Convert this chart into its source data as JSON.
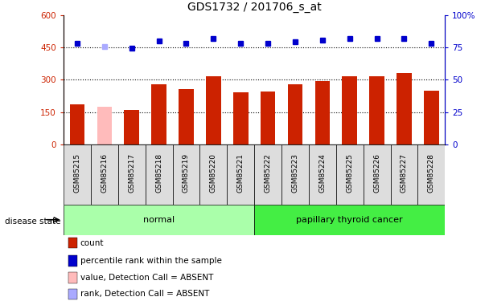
{
  "title": "GDS1732 / 201706_s_at",
  "samples": [
    "GSM85215",
    "GSM85216",
    "GSM85217",
    "GSM85218",
    "GSM85219",
    "GSM85220",
    "GSM85221",
    "GSM85222",
    "GSM85223",
    "GSM85224",
    "GSM85225",
    "GSM85226",
    "GSM85227",
    "GSM85228"
  ],
  "counts": [
    185,
    175,
    160,
    280,
    255,
    315,
    240,
    245,
    280,
    295,
    315,
    315,
    330,
    250
  ],
  "ranks": [
    470,
    455,
    445,
    480,
    470,
    490,
    470,
    470,
    475,
    485,
    490,
    490,
    490,
    470
  ],
  "absent_count_idx": [
    1
  ],
  "absent_rank_idx": [
    1
  ],
  "bar_color_normal": "#cc2200",
  "bar_color_absent": "#ffbbbb",
  "rank_color_normal": "#0000cc",
  "rank_color_absent": "#aaaaff",
  "normal_bg": "#aaffaa",
  "cancer_bg": "#44ee44",
  "label_area_bg": "#cccccc",
  "ylim_left": [
    0,
    600
  ],
  "ylim_right": [
    0,
    100
  ],
  "yticks_left": [
    0,
    150,
    300,
    450,
    600
  ],
  "yticks_right": [
    0,
    25,
    50,
    75,
    100
  ],
  "ytick_labels_left": [
    "0",
    "150",
    "300",
    "450",
    "600"
  ],
  "ytick_labels_right": [
    "0",
    "25",
    "50",
    "75",
    "100%"
  ],
  "hlines": [
    150,
    300,
    450
  ],
  "legend_items": [
    {
      "label": "count",
      "color": "#cc2200"
    },
    {
      "label": "percentile rank within the sample",
      "color": "#0000cc"
    },
    {
      "label": "value, Detection Call = ABSENT",
      "color": "#ffbbbb"
    },
    {
      "label": "rank, Detection Call = ABSENT",
      "color": "#aaaaff"
    }
  ]
}
